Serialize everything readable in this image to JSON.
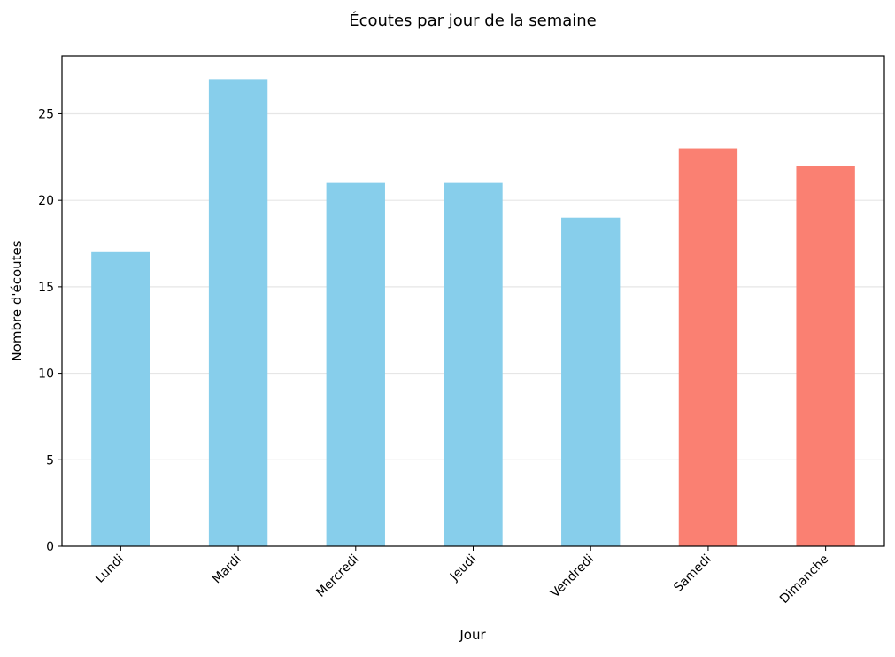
{
  "chart_data": {
    "type": "bar",
    "title": "Écoutes par jour de la semaine",
    "xlabel": "Jour",
    "ylabel": "Nombre d'écoutes",
    "categories": [
      "Lundi",
      "Mardi",
      "Mercredi",
      "Jeudi",
      "Vendredi",
      "Samedi",
      "Dimanche"
    ],
    "values": [
      17,
      27,
      21,
      21,
      19,
      23,
      22
    ],
    "bar_colors": [
      "#87CEEB",
      "#87CEEB",
      "#87CEEB",
      "#87CEEB",
      "#87CEEB",
      "#FA8072",
      "#FA8072"
    ],
    "ylim": [
      0,
      28.35
    ],
    "yticks": [
      0,
      5,
      10,
      15,
      20,
      25
    ],
    "grid": "y",
    "grid_color": "#e6e6e6",
    "xtick_rotation": 45
  }
}
